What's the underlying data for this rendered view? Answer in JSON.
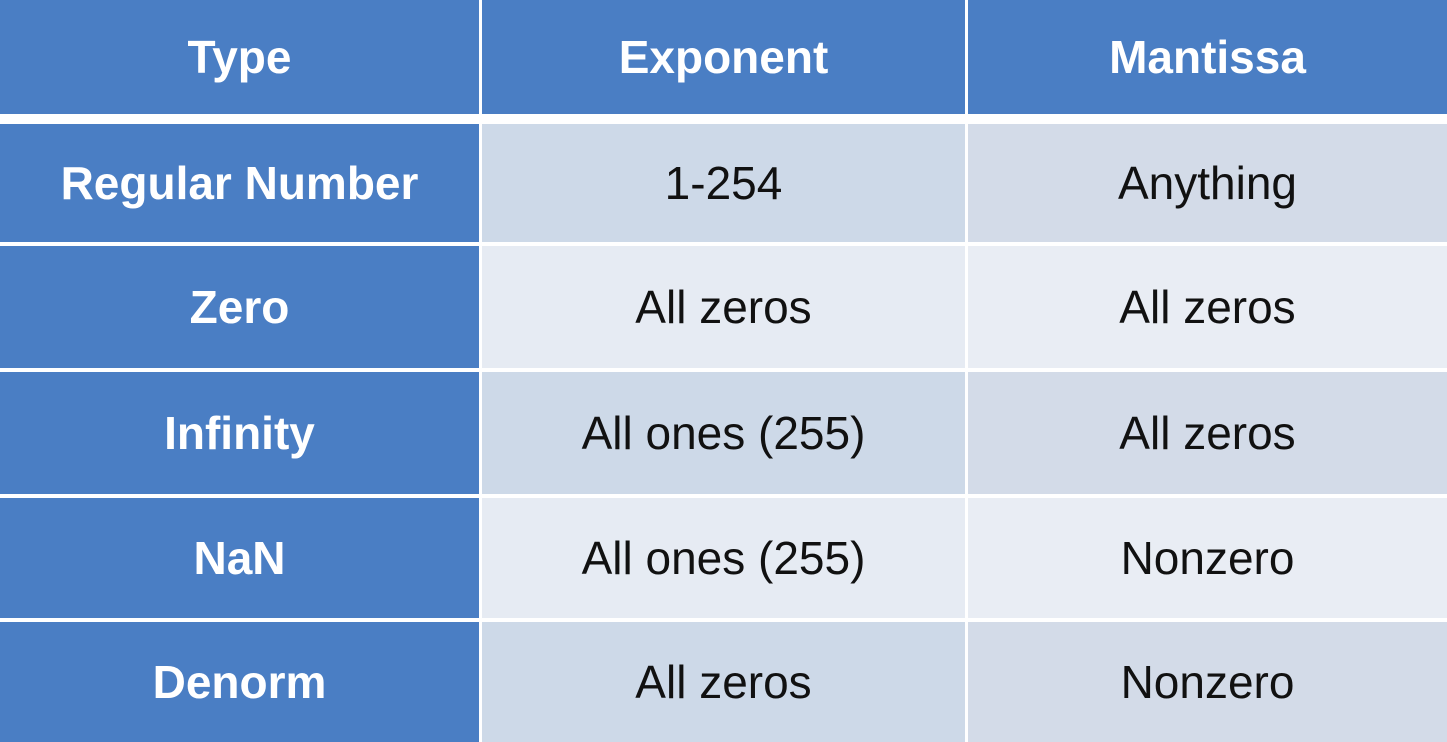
{
  "table": {
    "headers": [
      "Type",
      "Exponent",
      "Mantissa"
    ],
    "rows": [
      {
        "type": "Regular Number",
        "exponent": "1-254",
        "mantissa": "Anything"
      },
      {
        "type": "Zero",
        "exponent": "All zeros",
        "mantissa": "All zeros"
      },
      {
        "type": "Infinity",
        "exponent": "All ones (255)",
        "mantissa": "All zeros"
      },
      {
        "type": "NaN",
        "exponent": "All ones (255)",
        "mantissa": "Nonzero"
      },
      {
        "type": "Denorm",
        "exponent": "All zeros",
        "mantissa": "Nonzero"
      }
    ],
    "colors": {
      "header_bg": "#4a7ec4",
      "row_odd_bg": "#cdd9e8",
      "row_even_bg": "#e6ebf3",
      "header_text": "#ffffff",
      "body_text": "#111111"
    }
  }
}
